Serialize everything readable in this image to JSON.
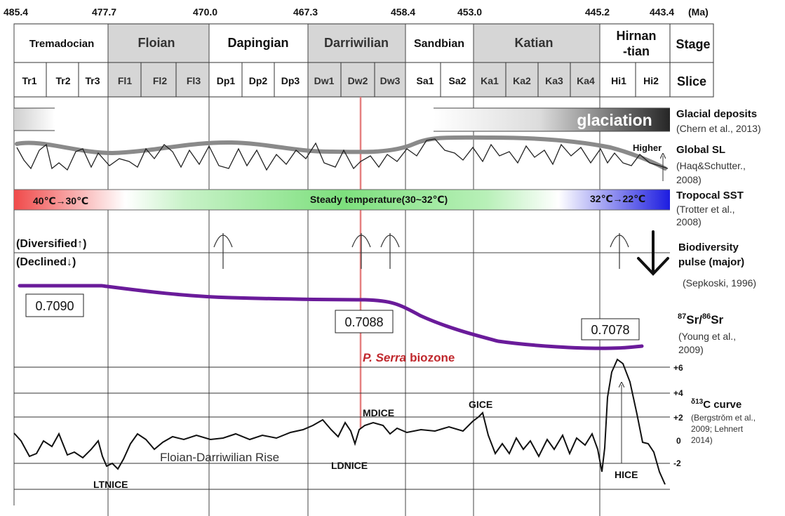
{
  "ages": [
    "485.4",
    "477.7",
    "470.0",
    "467.3",
    "458.4",
    "453.0",
    "445.2",
    "443.4"
  ],
  "age_unit": "(Ma)",
  "stages": [
    {
      "label": "Tremadocian",
      "shaded": false
    },
    {
      "label": "Floian",
      "shaded": true
    },
    {
      "label": "Dapingian",
      "shaded": false
    },
    {
      "label": "Darriwilian",
      "shaded": true
    },
    {
      "label": "Sandbian",
      "shaded": false
    },
    {
      "label": "Katian",
      "shaded": true
    },
    {
      "label_line1": "Hirnan",
      "label_line2": "-tian",
      "shaded": false
    }
  ],
  "stage_header": "Stage",
  "slices": [
    "Tr1",
    "Tr2",
    "Tr3",
    "Fl1",
    "Fl2",
    "Fl3",
    "Dp1",
    "Dp2",
    "Dp3",
    "Dw1",
    "Dw2",
    "Dw3",
    "Sa1",
    "Sa2",
    "Ka1",
    "Ka2",
    "Ka3",
    "Ka4",
    "Hi1",
    "Hi2"
  ],
  "slice_header": "Slice",
  "glaciation": {
    "label": "glaciation",
    "title": "Glacial deposits",
    "ref": "(Chern et al., 2013)"
  },
  "sea_level": {
    "title": "Global SL",
    "ref_line1": "(Haq&Schutter.,",
    "ref_line2": "2008)",
    "higher_label": "Higher"
  },
  "sst": {
    "left_label": "40℃→30℃",
    "mid_label": "Steady temperature(30~32℃)",
    "right_label": "32℃→22℃",
    "title": "Tropocal SST",
    "ref_line1": "(Trotter et al.,",
    "ref_line2": "2008)",
    "colors": {
      "red": "#f04040",
      "green": "#7de07d",
      "blue": "#2020e0"
    }
  },
  "biodiversity": {
    "diversified_label": "(Diversified↑)",
    "declined_label": "(Declined↓)",
    "title_line1": "Biodiversity",
    "title_line2": "pulse (major)",
    "ref": "(Sepkoski, 1996)"
  },
  "strontium": {
    "values": [
      "0.7090",
      "0.7088",
      "0.7078"
    ],
    "ref_line1": "(Young et al.,",
    "ref_line2": "2009)",
    "color": "#6a1b9a"
  },
  "biozone": {
    "species": "P. Serra",
    "word": "biozone",
    "color": "#c0282d"
  },
  "carbon": {
    "ticks": [
      "+6",
      "+4",
      "+2",
      "0",
      "-2"
    ],
    "title_rest": "C curve",
    "ref_line1": "(Bergstrǒm et al.,",
    "ref_line2": "2009; Lehnert",
    "ref_line3": "2014)",
    "events": [
      "LTNICE",
      "Floian-Darriwilian Rise",
      "MDICE",
      "LDNICE",
      "GICE",
      "HICE"
    ]
  }
}
